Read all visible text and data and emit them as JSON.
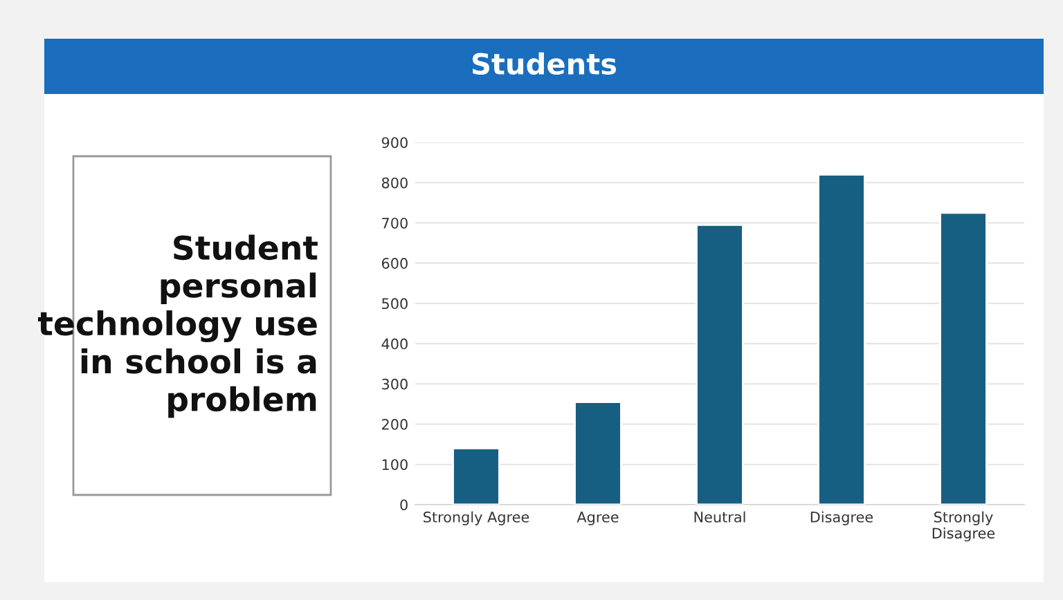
{
  "chart_data": {
    "type": "bar",
    "title": "Students",
    "categories": [
      "Strongly Agree",
      "Agree",
      "Neutral",
      "Disagree",
      "Strongly\nDisagree"
    ],
    "values": [
      140,
      255,
      695,
      820,
      725
    ],
    "color": "#175f82",
    "ylim": [
      0,
      900
    ],
    "yticks": [
      0,
      100,
      200,
      300,
      400,
      500,
      600,
      700,
      800,
      900
    ],
    "grid": "y",
    "annotations": [
      "Student personal technology use in school is a problem"
    ]
  }
}
